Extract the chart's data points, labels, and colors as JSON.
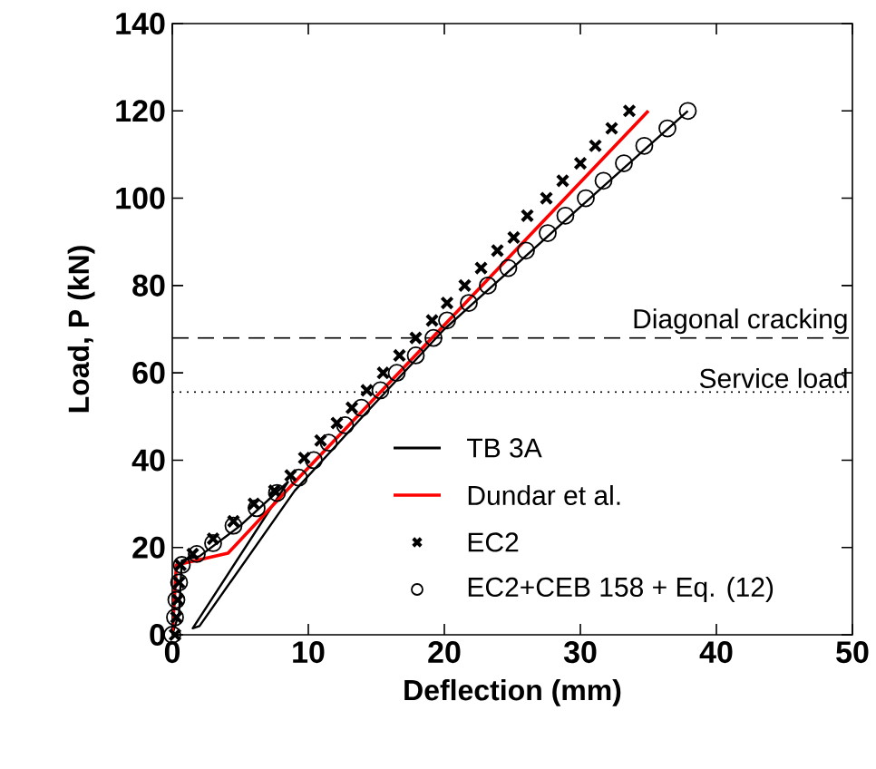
{
  "chart_data": {
    "type": "line",
    "xlabel": "Deflection (mm)",
    "ylabel": "Load, P (kN)",
    "xlim": [
      0,
      50
    ],
    "xticks": [
      0,
      10,
      20,
      30,
      40,
      50
    ],
    "ylim": [
      0,
      140
    ],
    "yticks": [
      0,
      20,
      40,
      60,
      80,
      100,
      120,
      140
    ],
    "grid": false,
    "legend": "bottom right",
    "series": [
      {
        "name": "TB 3A",
        "type": "line",
        "color": "#000000",
        "x": [
          0,
          0.5,
          0.7,
          2,
          5,
          8.5,
          1.5,
          2,
          9,
          14,
          20,
          30,
          37.9
        ],
        "values": [
          0,
          5,
          17,
          18,
          25,
          35,
          1.5,
          2,
          33,
          50,
          70,
          98,
          120
        ]
      },
      {
        "name": "Dundar et al.",
        "type": "line",
        "color": "#ff0000",
        "x": [
          0,
          0.3,
          4.1,
          8.7,
          35
        ],
        "values": [
          0,
          16,
          18.7,
          34,
          120
        ]
      },
      {
        "name": "EC2",
        "type": "scatter",
        "marker": "cross",
        "color": "#000000",
        "x": [
          0.2,
          0.3,
          0.4,
          0.5,
          0.6,
          1.5,
          3,
          4.5,
          6,
          7.5,
          8.7,
          9.7,
          10.9,
          12.1,
          13.2,
          14.3,
          15.5,
          16.7,
          17.9,
          19.1,
          20.2,
          21.5,
          22.7,
          23.9,
          25.1,
          26.1,
          27.5,
          28.7,
          30,
          31.1,
          32.3,
          33.6
        ],
        "values": [
          0,
          4,
          8,
          12,
          16,
          18.5,
          22,
          26,
          30,
          33,
          36.5,
          40.5,
          44.5,
          48.5,
          52,
          56,
          60,
          64,
          68,
          72,
          76,
          80,
          84,
          88,
          91,
          96,
          100,
          104,
          108,
          112,
          116,
          120
        ]
      },
      {
        "name": "EC2+CEB 158 + Eq. (12)",
        "type": "scatter",
        "marker": "circle",
        "color": "#000000",
        "x": [
          0,
          0.2,
          0.3,
          0.5,
          0.7,
          1.8,
          3,
          4.5,
          6.2,
          7.7,
          9.3,
          10.4,
          11.5,
          12.7,
          13.9,
          15.3,
          16.5,
          17.9,
          19.2,
          20.2,
          21.8,
          23.2,
          24.7,
          26,
          27.6,
          28.9,
          30.4,
          31.7,
          33.2,
          34.7,
          36.4,
          37.9
        ],
        "values": [
          0,
          4,
          8,
          12,
          16,
          18.5,
          21,
          25,
          29,
          32.5,
          36,
          40,
          44,
          48,
          52,
          56,
          60,
          64,
          68,
          72,
          76,
          80,
          84,
          88,
          92,
          96,
          100,
          104,
          108,
          112,
          116,
          120
        ]
      }
    ],
    "ref_lines": [
      {
        "axis": "y",
        "value": 68,
        "label": "Diagonal cracking",
        "line_style": "dashed",
        "color": "#000000"
      },
      {
        "axis": "y",
        "value": 55.6,
        "label": "Service load",
        "line_style": "dotted",
        "color": "#000000"
      }
    ]
  }
}
